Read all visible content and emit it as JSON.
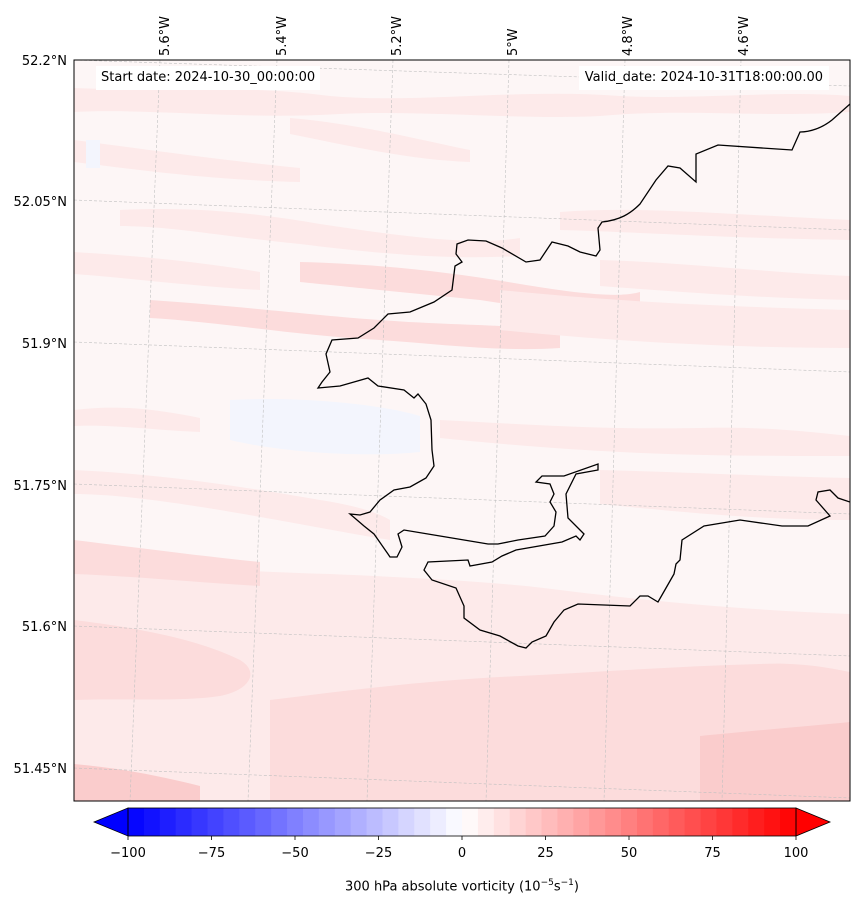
{
  "map": {
    "start_date": "Start date: 2024-10-30_00:00:00",
    "valid_date": "Valid_date: 2024-10-31T18:00:00.00",
    "lon_labels": [
      "5.6°W",
      "5.4°W",
      "5.2°W",
      "5°W",
      "4.8°W",
      "4.6°W"
    ],
    "lat_labels": [
      "52.2°N",
      "52.05°N",
      "51.9°N",
      "51.75°N",
      "51.6°N",
      "51.45°N"
    ],
    "field_colors": {
      "very_light": "#fdf6f6",
      "light": "#fdeaea",
      "medium": "#fcdcdc",
      "stronger": "#facccc",
      "slight_blue": "#f3f5fd"
    },
    "coastline_color": "#000000"
  },
  "colorbar": {
    "ticks": [
      "−100",
      "−75",
      "−50",
      "−25",
      "0",
      "25",
      "50",
      "75",
      "100"
    ],
    "min": -100,
    "max": 100,
    "steps": 42,
    "colormap": "bwr",
    "label_main": "300 hPa absolute vorticity (10",
    "label_exp1": "−5",
    "label_mid": "s",
    "label_exp2": "−1",
    "label_end": ")"
  }
}
